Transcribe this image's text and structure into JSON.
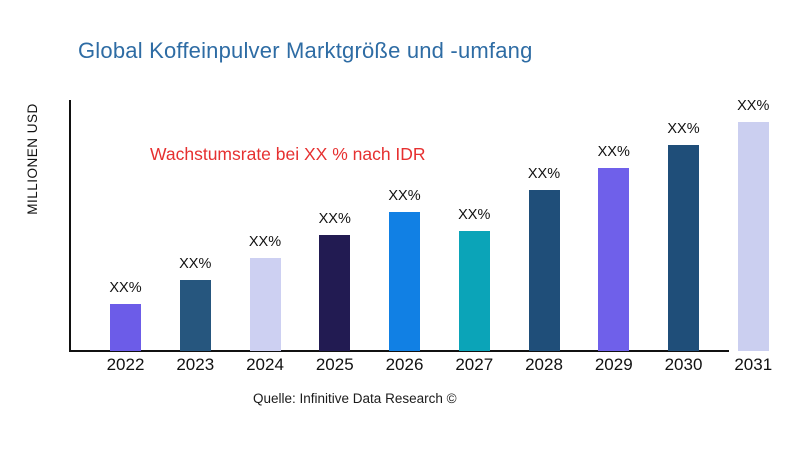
{
  "title": {
    "text": "Global Koffeinpulver Marktgröße und -umfang",
    "color": "#2E6CA4"
  },
  "annotation": {
    "text": "Wachstumsrate bei XX % nach IDR",
    "color": "#E63030"
  },
  "y_axis_label": "MILLIONEN USD",
  "source": "Quelle: Infinitive Data Research ©",
  "chart_data": {
    "type": "bar",
    "title": "Global Koffeinpulver Marktgröße und -umfang",
    "xlabel": "",
    "ylabel": "MILLIONEN USD",
    "categories": [
      "2022",
      "2023",
      "2024",
      "2025",
      "2026",
      "2027",
      "2028",
      "2029",
      "2030",
      "2031"
    ],
    "values": [
      47,
      71,
      93,
      116,
      139,
      120,
      161,
      183,
      206,
      229
    ],
    "values_note": "relative magnitudes estimated from bar heights; chart shows XX% placeholder labels instead of numbers",
    "bar_labels": [
      "XX%",
      "XX%",
      "XX%",
      "XX%",
      "XX%",
      "XX%",
      "XX%",
      "XX%",
      "XX%",
      "XX%"
    ],
    "bar_colors": [
      "#6C5CE8",
      "#26567E",
      "#CDD0F2",
      "#221B52",
      "#1180E4",
      "#0BA4B8",
      "#1F4E79",
      "#6F60EA",
      "#1F4E79",
      "#CBCFF0"
    ],
    "ylim": [
      0,
      251
    ],
    "grid": false,
    "legend": false,
    "axis_color": "#111111"
  }
}
